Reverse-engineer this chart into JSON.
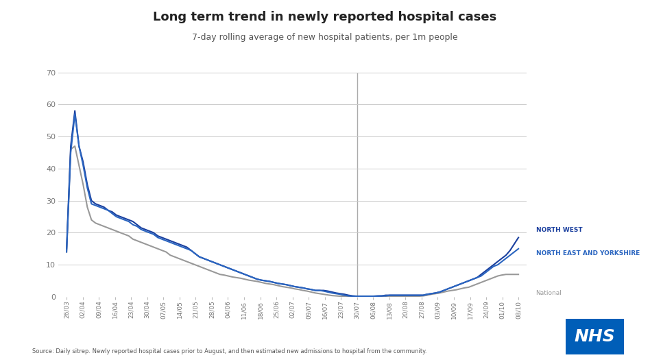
{
  "title": "Long term trend in newly reported hospital cases",
  "subtitle": "7-day rolling average of new hospital patients, per 1m people",
  "source_text": "Source: Daily sitrep. Newly reported hospital cases prior to August, and then estimated new admissions to hospital from the community.",
  "ylim": [
    0,
    70
  ],
  "yticks": [
    0,
    10,
    20,
    30,
    40,
    50,
    60,
    70
  ],
  "x_labels": [
    "26/03",
    "02/04",
    "09/04",
    "16/04",
    "23/04",
    "30/04",
    "07/05",
    "14/05",
    "21/05",
    "28/05",
    "04/06",
    "11/06",
    "18/06",
    "25/06",
    "02/07",
    "09/07",
    "16/07",
    "23/07",
    "30/07",
    "06/08",
    "13/08",
    "20/08",
    "27/08",
    "03/09",
    "10/09",
    "17/09",
    "24/09",
    "01/10",
    "08/10"
  ],
  "vertical_line_label": "30/07",
  "colors": {
    "north_west": "#1a3f9e",
    "north_east": "#2a65c0",
    "national": "#999999",
    "background": "#ffffff",
    "grid": "#cccccc",
    "title": "#222222",
    "subtitle": "#555555",
    "source": "#555555",
    "vertical_line": "#aaaaaa"
  },
  "north_west": [
    15.0,
    47.0,
    58.0,
    47.0,
    42.0,
    35.0,
    30.0,
    29.0,
    28.5,
    28.0,
    27.0,
    26.5,
    25.5,
    25.0,
    24.5,
    24.0,
    23.5,
    22.5,
    21.5,
    21.0,
    20.5,
    20.0,
    19.0,
    18.5,
    18.0,
    17.5,
    17.0,
    16.5,
    16.0,
    15.5,
    14.5,
    13.5,
    12.5,
    12.0,
    11.5,
    11.0,
    10.5,
    10.0,
    9.5,
    9.0,
    8.5,
    8.0,
    7.5,
    7.0,
    6.5,
    6.0,
    5.5,
    5.2,
    5.0,
    4.8,
    4.5,
    4.2,
    4.0,
    3.8,
    3.5,
    3.2,
    3.0,
    2.8,
    2.5,
    2.3,
    2.0,
    2.0,
    2.0,
    1.8,
    1.5,
    1.2,
    1.0,
    0.8,
    0.5,
    0.3,
    0.2,
    0.2,
    0.2,
    0.2,
    0.2,
    0.3,
    0.3,
    0.5,
    0.5,
    0.5,
    0.5,
    0.5,
    0.5,
    0.5,
    0.5,
    0.5,
    0.5,
    0.8,
    1.0,
    1.2,
    1.5,
    2.0,
    2.5,
    3.0,
    3.5,
    4.0,
    4.5,
    5.0,
    5.5,
    6.0,
    7.0,
    8.0,
    9.0,
    10.0,
    11.0,
    12.0,
    13.0,
    14.5,
    16.5,
    18.5
  ],
  "north_east": [
    14.0,
    45.0,
    57.0,
    47.0,
    41.0,
    34.0,
    29.0,
    28.5,
    28.0,
    27.5,
    27.0,
    26.0,
    25.0,
    24.5,
    24.0,
    23.5,
    22.5,
    22.0,
    21.0,
    20.5,
    20.0,
    19.5,
    18.5,
    18.0,
    17.5,
    17.0,
    16.5,
    16.0,
    15.5,
    15.0,
    14.5,
    13.5,
    12.5,
    12.0,
    11.5,
    11.0,
    10.5,
    10.0,
    9.5,
    9.0,
    8.5,
    8.0,
    7.5,
    7.0,
    6.5,
    6.0,
    5.5,
    5.2,
    5.0,
    4.8,
    4.5,
    4.2,
    4.0,
    3.8,
    3.5,
    3.2,
    3.0,
    2.8,
    2.5,
    2.3,
    2.0,
    2.0,
    1.8,
    1.5,
    1.2,
    1.0,
    0.8,
    0.5,
    0.3,
    0.2,
    0.2,
    0.2,
    0.2,
    0.2,
    0.2,
    0.2,
    0.3,
    0.3,
    0.5,
    0.5,
    0.5,
    0.5,
    0.5,
    0.5,
    0.5,
    0.5,
    0.5,
    0.8,
    1.0,
    1.2,
    1.5,
    2.0,
    2.5,
    3.0,
    3.5,
    4.0,
    4.5,
    5.0,
    5.5,
    6.0,
    6.5,
    7.5,
    8.5,
    9.5,
    10.0,
    11.0,
    12.0,
    13.0,
    14.0,
    15.0
  ],
  "national": [
    14.0,
    46.0,
    47.0,
    41.0,
    35.0,
    28.0,
    24.0,
    23.0,
    22.5,
    22.0,
    21.5,
    21.0,
    20.5,
    20.0,
    19.5,
    19.0,
    18.0,
    17.5,
    17.0,
    16.5,
    16.0,
    15.5,
    15.0,
    14.5,
    14.0,
    13.0,
    12.5,
    12.0,
    11.5,
    11.0,
    10.5,
    10.0,
    9.5,
    9.0,
    8.5,
    8.0,
    7.5,
    7.0,
    6.8,
    6.5,
    6.2,
    6.0,
    5.8,
    5.5,
    5.2,
    5.0,
    4.8,
    4.5,
    4.2,
    4.0,
    3.8,
    3.5,
    3.2,
    3.0,
    2.8,
    2.5,
    2.3,
    2.0,
    1.8,
    1.5,
    1.2,
    1.0,
    0.8,
    0.6,
    0.4,
    0.3,
    0.2,
    0.2,
    0.2,
    0.2,
    0.2,
    0.2,
    0.2,
    0.2,
    0.2,
    0.2,
    0.2,
    0.2,
    0.2,
    0.2,
    0.2,
    0.2,
    0.2,
    0.2,
    0.2,
    0.2,
    0.3,
    0.5,
    0.8,
    1.0,
    1.2,
    1.5,
    1.8,
    2.0,
    2.2,
    2.5,
    2.8,
    3.0,
    3.5,
    4.0,
    4.5,
    5.0,
    5.5,
    6.0,
    6.5,
    6.8,
    7.0,
    7.0,
    7.0,
    7.0
  ],
  "nhs_logo_color": "#005EB8",
  "legend_entries": [
    "NORTH WEST",
    "NORTH EAST AND YORKSHIRE",
    "National"
  ]
}
